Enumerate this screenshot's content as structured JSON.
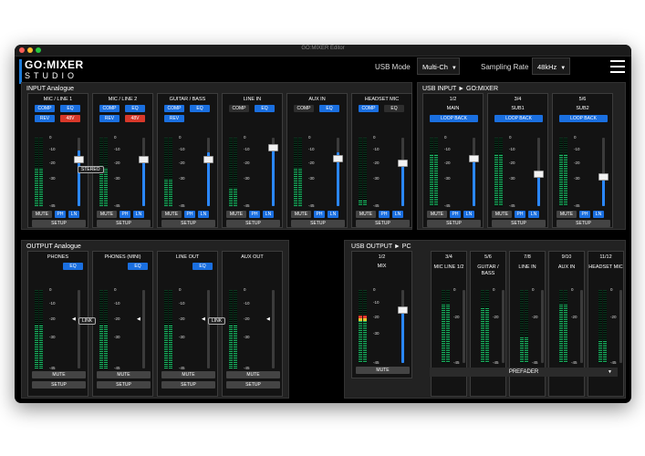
{
  "window": {
    "title": "GO:MIXER Editor"
  },
  "header": {
    "logo_line1": "GO:MIXER",
    "logo_line2": "STUDIO",
    "usb_mode_label": "USB Mode",
    "usb_mode_value": "Multi-Ch",
    "sampling_rate_label": "Sampling Rate",
    "sampling_rate_value": "48kHz",
    "caret": "▼"
  },
  "colors": {
    "accent_blue": "#1a6fe0",
    "red": "#d8382a",
    "meter_green": "#1ec26a"
  },
  "scale_labels": [
    "0",
    "-10",
    "-20",
    "-30",
    "-45"
  ],
  "common": {
    "mute": "MUTE",
    "setup": "SETUP",
    "ph": "PH",
    "ln": "LN",
    "comp": "COMP",
    "eq": "EQ",
    "rev": "REV",
    "v48": "48V",
    "loop_back": "LOOP BACK",
    "stereo": "STEREO",
    "link": "LINK"
  },
  "input_analogue": {
    "title": "INPUT Analogue",
    "channels": [
      {
        "name": "MIC / LINE 1"
      },
      {
        "name": "MIC / LINE 2"
      },
      {
        "name": "GUITAR / BASS"
      },
      {
        "name": "LINE IN"
      },
      {
        "name": "AUX IN"
      },
      {
        "name": "HEADSET MIC"
      }
    ]
  },
  "usb_input": {
    "title": "USB INPUT ► GO:MIXER",
    "channels": [
      {
        "num": "1/2",
        "name": "MAIN"
      },
      {
        "num": "3/4",
        "name": "SUB1"
      },
      {
        "num": "5/6",
        "name": "SUB2"
      }
    ]
  },
  "output_analogue": {
    "title": "OUTPUT Analogue",
    "channels": [
      {
        "name": "PHONES"
      },
      {
        "name": "PHONES (MINI)"
      },
      {
        "name": "LINE OUT"
      },
      {
        "name": "AUX OUT"
      }
    ]
  },
  "usb_output": {
    "title": "USB OUTPUT ► PC",
    "mix": {
      "num": "1/2",
      "name": "MIX"
    },
    "channels": [
      {
        "num": "3/4",
        "name": "MIC LINE 1/2"
      },
      {
        "num": "5/6",
        "name": "GUITAR / BASS"
      },
      {
        "num": "7/8",
        "name": "LINE IN"
      },
      {
        "num": "9/10",
        "name": "AUX IN"
      },
      {
        "num": "11/12",
        "name": "HEADSET MIC"
      }
    ],
    "prefader": "PREFADER",
    "prefader_caret": "▼"
  }
}
